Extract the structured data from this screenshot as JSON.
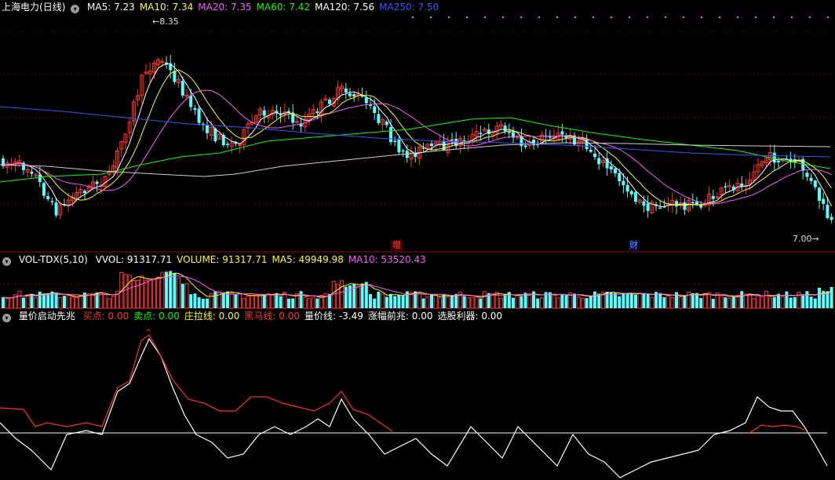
{
  "main_header": {
    "stock_name": "上海电力",
    "period": "(日线)",
    "indicators": [
      {
        "label": "MA5: 7.23",
        "color": "#ffffff"
      },
      {
        "label": "MA10: 7.34",
        "color": "#ffff00"
      },
      {
        "label": "MA20: 7.35",
        "color": "#ff55ff"
      },
      {
        "label": "MA60: 7.42",
        "color": "#00ff00"
      },
      {
        "label": "MA120: 7.56",
        "color": "#ffffff"
      },
      {
        "label": "MA250: 7.50",
        "color": "#3355ff"
      }
    ]
  },
  "markers": {
    "high_label": "8.35",
    "low_label": "7.00",
    "event_tags": [
      {
        "label": "增",
        "color": "#ff4444"
      },
      {
        "label": "财",
        "color": "#44aaff"
      }
    ]
  },
  "vol_header": {
    "name": "VOL-TDX(5,10)",
    "items": [
      {
        "label": "VVOL: 91317.71",
        "color": "#ffffff"
      },
      {
        "label": "VOLUME: 91317.71",
        "color": "#ffff00"
      },
      {
        "label": "MA5: 49949.98",
        "color": "#ffff00"
      },
      {
        "label": "MA10: 53520.43",
        "color": "#ff55ff"
      }
    ]
  },
  "ind_header": {
    "name": "量价启动先兆",
    "items": [
      {
        "label": "买点: 0.00",
        "color": "#ff3333"
      },
      {
        "label": "卖点: 0.00",
        "color": "#00ff00"
      },
      {
        "label": "庄拉线: 0.00",
        "color": "#ffff00"
      },
      {
        "label": "黑马线: 0.00",
        "color": "#ff3333"
      },
      {
        "label": "量价线: -3.49",
        "color": "#ffffff"
      },
      {
        "label": "涨幅前兆: 0.00",
        "color": "#ffffff"
      },
      {
        "label": "选股利器: 0.00",
        "color": "#ffffff"
      }
    ]
  },
  "colors": {
    "up": "#ff3232",
    "down": "#54ffff",
    "separator": "#a00000",
    "grid": "#8b0000"
  }
}
